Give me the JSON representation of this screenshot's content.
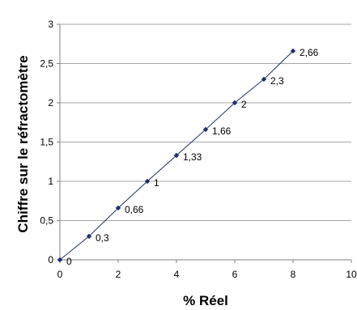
{
  "chart_data": {
    "type": "line",
    "title": "",
    "xlabel": "% Réel",
    "ylabel": "Chiffre sur le réfractomètre",
    "xlim": [
      0,
      10
    ],
    "ylim": [
      0,
      3
    ],
    "xticks": [
      "0",
      "2",
      "4",
      "6",
      "8",
      "10"
    ],
    "yticks": [
      "0",
      "0,5",
      "1",
      "1,5",
      "2",
      "2,5",
      "3"
    ],
    "grid": "horizontal",
    "legend": "none",
    "series": [
      {
        "x": [
          0,
          1,
          2,
          3,
          4,
          5,
          6,
          7,
          8
        ],
        "values": [
          0,
          0.3,
          0.66,
          1,
          1.33,
          1.66,
          2,
          2.3,
          2.66
        ],
        "labels": [
          "0",
          "0,3",
          "0,66",
          "1",
          "1,33",
          "1,66",
          "2",
          "2,3",
          "2,66"
        ],
        "color": "#1f2d6e",
        "marker": "diamond"
      }
    ]
  }
}
